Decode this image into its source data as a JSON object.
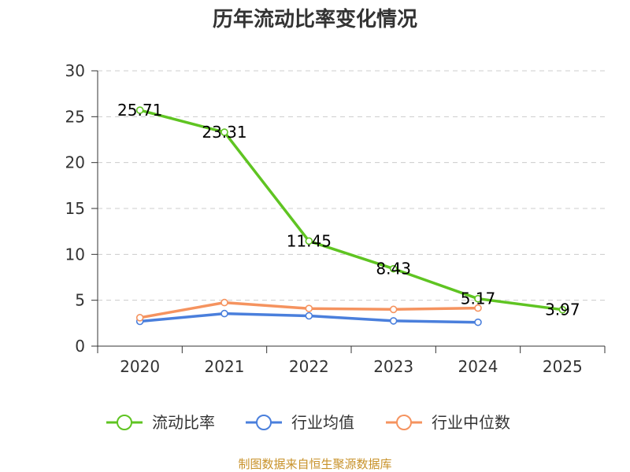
{
  "chart_data": {
    "type": "line",
    "title": "历年流动比率变化情况",
    "categories": [
      "2020",
      "2021",
      "2022",
      "2023",
      "2024",
      "2025"
    ],
    "ylim": [
      0,
      30
    ],
    "yticks": [
      0,
      5,
      10,
      15,
      20,
      25,
      30
    ],
    "grid": true,
    "legend_position": "bottom",
    "series": [
      {
        "name": "流动比率",
        "color": "#5fc422",
        "values": [
          25.71,
          23.31,
          11.45,
          8.43,
          5.17,
          3.97
        ],
        "labels": [
          "25.71",
          "23.31",
          "11.45",
          "8.43",
          "5.17",
          "3.97"
        ]
      },
      {
        "name": "行业均值",
        "color": "#4a7fdc",
        "values": [
          2.7,
          3.55,
          3.3,
          2.75,
          2.6,
          null
        ]
      },
      {
        "name": "行业中位数",
        "color": "#f5935f",
        "values": [
          3.1,
          4.75,
          4.1,
          4.0,
          4.15,
          null
        ]
      }
    ]
  },
  "footer": {
    "source": "制图数据来自恒生聚源数据库"
  }
}
